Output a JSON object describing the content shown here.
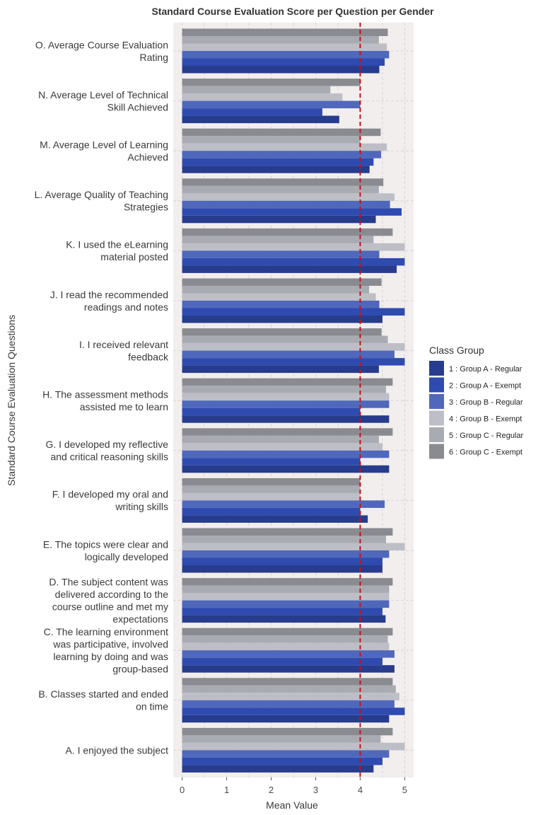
{
  "chart_data": {
    "type": "bar",
    "orientation": "horizontal",
    "title": "Standard Course Evaluation Score per Question per Gender",
    "xlabel": "Mean Value",
    "ylabel": "Standard Course Evaluation Questions",
    "xlim": [
      -0.2,
      5.2
    ],
    "xticks": [
      0,
      1,
      2,
      3,
      4,
      5
    ],
    "grid": true,
    "reference_line": {
      "x": 4,
      "color": "#c0141c",
      "style": "dashed"
    },
    "legend": {
      "title": "Class Group",
      "placement": "right"
    },
    "categories": [
      "O. Average Course Evaluation\nRating",
      "N. Average Level of Technical\nSkill Achieved",
      "M. Average Level of Learning\nAchieved",
      "L. Average Quality of Teaching\nStrategies",
      "K. I used the eLearning\nmaterial posted",
      "J. I read the recommended\nreadings and notes",
      "I. I received relevant\nfeedback",
      "H. The assessment methods\nassisted me to learn",
      "G. I developed my reflective\nand critical reasoning skills",
      "F. I developed my oral and\nwriting skills",
      "E. The topics were clear and\nlogically developed",
      "D. The subject content was\ndelivered according to the\ncourse outline and met my\nexpectations",
      "C. The learning environment\nwas participative, involved\nlearning by doing and was\ngroup-based",
      "B. Classes started and ended\non time",
      "A. I enjoyed the subject"
    ],
    "series": [
      {
        "name": "1 : Group A - Regular",
        "color": "#273c8c",
        "values": [
          4.43,
          3.53,
          4.21,
          4.35,
          4.82,
          4.5,
          4.42,
          4.65,
          4.65,
          4.17,
          4.5,
          4.57,
          4.77,
          4.65,
          4.3
        ]
      },
      {
        "name": "2 : Group A - Exempt",
        "color": "#2f4bb0",
        "values": [
          4.55,
          3.15,
          4.3,
          4.93,
          5.0,
          5.0,
          5.0,
          4.0,
          4.0,
          4.0,
          4.5,
          4.5,
          4.5,
          5.0,
          4.5
        ]
      },
      {
        "name": "3 : Group B - Regular",
        "color": "#5068bb",
        "values": [
          4.65,
          4.0,
          4.47,
          4.67,
          4.43,
          4.43,
          4.77,
          4.65,
          4.65,
          4.55,
          4.65,
          4.65,
          4.77,
          4.77,
          4.65
        ]
      },
      {
        "name": "4 : Group B - Exempt",
        "color": "#bdbec6",
        "values": [
          4.6,
          3.6,
          4.6,
          4.77,
          5.0,
          4.35,
          5.0,
          4.65,
          4.5,
          4.0,
          5.0,
          4.65,
          4.65,
          4.88,
          5.0
        ]
      },
      {
        "name": "5 : Group C - Regular",
        "color": "#a9abb2",
        "values": [
          4.42,
          3.33,
          4.0,
          4.42,
          4.3,
          4.2,
          4.62,
          4.58,
          4.42,
          4.0,
          4.58,
          4.65,
          4.62,
          4.8,
          4.46
        ]
      },
      {
        "name": "6 : Group C - Exempt",
        "color": "#8a8b91",
        "values": [
          4.62,
          4.0,
          4.46,
          4.52,
          4.73,
          4.48,
          4.48,
          4.73,
          4.73,
          4.0,
          4.73,
          4.73,
          4.73,
          4.73,
          4.73
        ]
      }
    ]
  },
  "colors": {
    "panel_background": "#f2eeee",
    "grid": "#d9d2d2"
  }
}
